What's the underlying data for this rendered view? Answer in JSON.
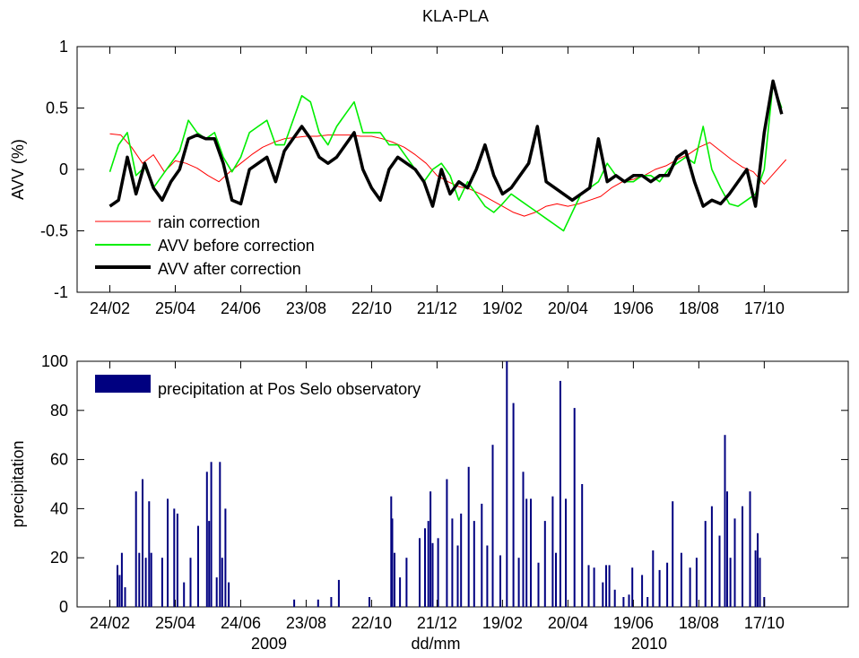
{
  "figure": {
    "title": "KLA-PLA",
    "xlabel": "dd/mm",
    "year_labels": [
      "2009",
      "2010"
    ]
  },
  "colors": {
    "rain": "#ff0000",
    "before": "#00ee00",
    "after": "#000000",
    "precip": "#000080"
  },
  "chart_data": [
    {
      "type": "line",
      "title": "KLA-PLA",
      "ylabel": "AVV (%)",
      "xlabel": "",
      "xlim": [
        "2009-01-25",
        "2011-01-02"
      ],
      "ylim": [
        -1,
        1
      ],
      "yticks": [
        -1,
        -0.5,
        0,
        0.5,
        1
      ],
      "ytick_labels": [
        "-1",
        "-0.5",
        "0",
        "0.5",
        "1"
      ],
      "xticks": [
        "2009-02-24",
        "2009-04-25",
        "2009-06-24",
        "2009-08-23",
        "2009-10-22",
        "2009-12-21",
        "2010-02-19",
        "2010-04-20",
        "2010-06-19",
        "2010-08-18",
        "2010-10-17"
      ],
      "xtick_labels": [
        "24/02",
        "25/04",
        "24/06",
        "23/08",
        "22/10",
        "21/12",
        "19/02",
        "20/04",
        "19/06",
        "18/08",
        "17/10"
      ],
      "grid": false,
      "legend_position": "bottom-left",
      "series": [
        {
          "name": "rain correction",
          "x": [
            "2009-02-24",
            "2009-03-06",
            "2009-03-16",
            "2009-03-26",
            "2009-04-05",
            "2009-04-15",
            "2009-04-25",
            "2009-05-05",
            "2009-05-15",
            "2009-05-25",
            "2009-06-04",
            "2009-06-14",
            "2009-06-24",
            "2009-07-04",
            "2009-07-14",
            "2009-07-24",
            "2009-08-03",
            "2009-08-13",
            "2009-08-23",
            "2009-09-02",
            "2009-09-12",
            "2009-09-22",
            "2009-10-02",
            "2009-10-12",
            "2009-10-22",
            "2009-11-01",
            "2009-11-11",
            "2009-11-21",
            "2009-12-01",
            "2009-12-11",
            "2009-12-21",
            "2009-12-31",
            "2010-01-10",
            "2010-01-20",
            "2010-01-30",
            "2010-02-09",
            "2010-02-19",
            "2010-03-01",
            "2010-03-11",
            "2010-03-21",
            "2010-03-31",
            "2010-04-10",
            "2010-04-20",
            "2010-04-30",
            "2010-05-10",
            "2010-05-20",
            "2010-05-30",
            "2010-06-09",
            "2010-06-19",
            "2010-06-29",
            "2010-07-09",
            "2010-07-19",
            "2010-07-29",
            "2010-08-08",
            "2010-08-18",
            "2010-08-28",
            "2010-09-07",
            "2010-09-17",
            "2010-09-27",
            "2010-10-07",
            "2010-10-17",
            "2010-10-27",
            "2010-11-06"
          ],
          "values": [
            0.29,
            0.28,
            0.18,
            0.05,
            0.12,
            -0.02,
            0.07,
            0.05,
            0.01,
            -0.05,
            -0.1,
            -0.02,
            0.05,
            0.12,
            0.18,
            0.22,
            0.25,
            0.26,
            0.27,
            0.27,
            0.28,
            0.28,
            0.28,
            0.27,
            0.27,
            0.25,
            0.22,
            0.18,
            0.12,
            0.05,
            -0.05,
            -0.1,
            -0.14,
            -0.16,
            -0.2,
            -0.25,
            -0.3,
            -0.35,
            -0.38,
            -0.35,
            -0.3,
            -0.28,
            -0.3,
            -0.28,
            -0.25,
            -0.22,
            -0.15,
            -0.1,
            -0.08,
            -0.05,
            0.0,
            0.03,
            0.08,
            0.12,
            0.18,
            0.22,
            0.15,
            0.08,
            0.02,
            -0.02,
            -0.12,
            -0.02,
            0.08
          ]
        },
        {
          "name": "AVV before correction",
          "x": [
            "2009-02-24",
            "2009-03-04",
            "2009-03-12",
            "2009-03-20",
            "2009-03-28",
            "2009-04-05",
            "2009-04-13",
            "2009-04-21",
            "2009-04-29",
            "2009-05-07",
            "2009-05-15",
            "2009-05-23",
            "2009-05-31",
            "2009-06-08",
            "2009-06-16",
            "2009-06-24",
            "2009-07-02",
            "2009-07-10",
            "2009-07-18",
            "2009-07-26",
            "2009-08-03",
            "2009-08-11",
            "2009-08-19",
            "2009-08-27",
            "2009-09-04",
            "2009-09-12",
            "2009-09-20",
            "2009-09-28",
            "2009-10-06",
            "2009-10-14",
            "2009-10-22",
            "2009-10-30",
            "2009-11-07",
            "2009-11-15",
            "2009-11-23",
            "2009-12-01",
            "2009-12-09",
            "2009-12-17",
            "2009-12-25",
            "2010-01-02",
            "2010-01-10",
            "2010-01-18",
            "2010-01-26",
            "2010-02-03",
            "2010-02-11",
            "2010-02-19",
            "2010-02-27",
            "2010-03-07",
            "2010-03-15",
            "2010-03-23",
            "2010-03-31",
            "2010-04-08",
            "2010-04-16",
            "2010-04-24",
            "2010-05-02",
            "2010-05-10",
            "2010-05-18",
            "2010-05-26",
            "2010-06-03",
            "2010-06-11",
            "2010-06-19",
            "2010-06-27",
            "2010-07-05",
            "2010-07-13",
            "2010-07-21",
            "2010-07-29",
            "2010-08-06",
            "2010-08-14",
            "2010-08-22",
            "2010-08-30",
            "2010-09-07",
            "2010-09-15",
            "2010-09-23",
            "2010-10-01",
            "2010-10-09",
            "2010-10-17",
            "2010-10-25",
            "2010-11-02"
          ],
          "values": [
            -0.02,
            0.2,
            0.3,
            -0.05,
            0.02,
            -0.15,
            -0.05,
            0.05,
            0.15,
            0.4,
            0.3,
            0.25,
            0.3,
            0.1,
            -0.02,
            0.1,
            0.3,
            0.35,
            0.4,
            0.2,
            0.2,
            0.4,
            0.6,
            0.55,
            0.3,
            0.2,
            0.35,
            0.45,
            0.55,
            0.3,
            0.3,
            0.3,
            0.2,
            0.2,
            0.1,
            0.0,
            -0.1,
            0.0,
            0.05,
            -0.05,
            -0.25,
            -0.1,
            -0.2,
            -0.3,
            -0.35,
            -0.28,
            -0.2,
            -0.25,
            -0.3,
            -0.35,
            -0.4,
            -0.45,
            -0.5,
            -0.35,
            -0.2,
            -0.15,
            -0.1,
            0.05,
            -0.05,
            -0.1,
            -0.1,
            -0.05,
            -0.05,
            -0.1,
            0.0,
            0.05,
            0.1,
            0.05,
            0.35,
            0.0,
            -0.15,
            -0.28,
            -0.3,
            -0.25,
            -0.2,
            0.0,
            0.7,
            0.5
          ]
        },
        {
          "name": "AVV after correction",
          "x": [
            "2009-02-24",
            "2009-03-04",
            "2009-03-12",
            "2009-03-20",
            "2009-03-28",
            "2009-04-05",
            "2009-04-13",
            "2009-04-21",
            "2009-04-29",
            "2009-05-07",
            "2009-05-15",
            "2009-05-23",
            "2009-05-31",
            "2009-06-08",
            "2009-06-16",
            "2009-06-24",
            "2009-07-02",
            "2009-07-10",
            "2009-07-18",
            "2009-07-26",
            "2009-08-03",
            "2009-08-11",
            "2009-08-19",
            "2009-08-27",
            "2009-09-04",
            "2009-09-12",
            "2009-09-20",
            "2009-09-28",
            "2009-10-06",
            "2009-10-14",
            "2009-10-22",
            "2009-10-30",
            "2009-11-07",
            "2009-11-15",
            "2009-11-23",
            "2009-12-01",
            "2009-12-09",
            "2009-12-17",
            "2009-12-25",
            "2010-01-02",
            "2010-01-10",
            "2010-01-18",
            "2010-01-26",
            "2010-02-03",
            "2010-02-11",
            "2010-02-19",
            "2010-02-27",
            "2010-03-07",
            "2010-03-15",
            "2010-03-23",
            "2010-03-31",
            "2010-04-08",
            "2010-04-16",
            "2010-04-24",
            "2010-05-02",
            "2010-05-10",
            "2010-05-18",
            "2010-05-26",
            "2010-06-03",
            "2010-06-11",
            "2010-06-19",
            "2010-06-27",
            "2010-07-05",
            "2010-07-13",
            "2010-07-21",
            "2010-07-29",
            "2010-08-06",
            "2010-08-14",
            "2010-08-22",
            "2010-08-30",
            "2010-09-07",
            "2010-09-15",
            "2010-09-23",
            "2010-10-01",
            "2010-10-09",
            "2010-10-17",
            "2010-10-25",
            "2010-11-02"
          ],
          "values": [
            -0.3,
            -0.25,
            0.1,
            -0.2,
            0.05,
            -0.15,
            -0.25,
            -0.1,
            0.0,
            0.25,
            0.28,
            0.25,
            0.25,
            0.05,
            -0.25,
            -0.28,
            0.0,
            0.05,
            0.1,
            -0.1,
            0.15,
            0.25,
            0.35,
            0.25,
            0.1,
            0.05,
            0.1,
            0.2,
            0.3,
            0.0,
            -0.15,
            -0.25,
            0.0,
            0.1,
            0.05,
            0.0,
            -0.1,
            -0.3,
            0.0,
            -0.2,
            -0.1,
            -0.15,
            0.0,
            0.2,
            -0.05,
            -0.2,
            -0.15,
            -0.05,
            0.05,
            0.35,
            -0.1,
            -0.15,
            -0.2,
            -0.25,
            -0.2,
            -0.15,
            0.25,
            -0.1,
            -0.05,
            -0.1,
            -0.05,
            -0.05,
            -0.1,
            -0.05,
            -0.05,
            0.1,
            0.15,
            -0.1,
            -0.3,
            -0.25,
            -0.28,
            -0.2,
            -0.1,
            0.0,
            -0.3,
            0.3,
            0.72,
            0.45
          ]
        }
      ]
    },
    {
      "type": "bar",
      "title": "",
      "ylabel": "precipitation",
      "xlabel": "dd/mm",
      "xlim": [
        "2009-01-25",
        "2011-01-02"
      ],
      "ylim": [
        0,
        100
      ],
      "yticks": [
        0,
        20,
        40,
        60,
        80,
        100
      ],
      "ytick_labels": [
        "0",
        "20",
        "40",
        "60",
        "80",
        "100"
      ],
      "xticks": [
        "2009-02-24",
        "2009-04-25",
        "2009-06-24",
        "2009-08-23",
        "2009-10-22",
        "2009-12-21",
        "2010-02-19",
        "2010-04-20",
        "2010-06-19",
        "2010-08-18",
        "2010-10-17"
      ],
      "xtick_labels": [
        "24/02",
        "25/04",
        "24/06",
        "23/08",
        "22/10",
        "21/12",
        "19/02",
        "20/04",
        "19/06",
        "18/08",
        "17/10"
      ],
      "grid": false,
      "legend_position": "top-left",
      "series": [
        {
          "name": "precipitation at Pos Selo observatory",
          "x": [
            "2009-03-03",
            "2009-03-05",
            "2009-03-07",
            "2009-03-10",
            "2009-03-20",
            "2009-03-23",
            "2009-03-26",
            "2009-03-29",
            "2009-04-01",
            "2009-04-03",
            "2009-04-13",
            "2009-04-18",
            "2009-04-24",
            "2009-04-27",
            "2009-05-03",
            "2009-05-09",
            "2009-05-16",
            "2009-05-24",
            "2009-05-26",
            "2009-05-28",
            "2009-06-02",
            "2009-06-05",
            "2009-06-07",
            "2009-06-10",
            "2009-06-13",
            "2009-08-12",
            "2009-09-03",
            "2009-09-15",
            "2009-09-22",
            "2009-10-20",
            "2009-11-09",
            "2009-11-10",
            "2009-11-12",
            "2009-11-17",
            "2009-11-23",
            "2009-12-05",
            "2009-12-10",
            "2009-12-13",
            "2009-12-15",
            "2009-12-17",
            "2009-12-22",
            "2009-12-30",
            "2010-01-04",
            "2010-01-09",
            "2010-01-12",
            "2010-01-19",
            "2010-01-24",
            "2010-01-31",
            "2010-02-05",
            "2010-02-10",
            "2010-02-17",
            "2010-02-23",
            "2010-03-01",
            "2010-03-06",
            "2010-03-10",
            "2010-03-13",
            "2010-03-17",
            "2010-03-24",
            "2010-03-30",
            "2010-04-06",
            "2010-04-09",
            "2010-04-13",
            "2010-04-18",
            "2010-04-26",
            "2010-05-03",
            "2010-05-09",
            "2010-05-14",
            "2010-05-22",
            "2010-05-25",
            "2010-05-28",
            "2010-06-02",
            "2010-06-10",
            "2010-06-15",
            "2010-06-18",
            "2010-06-27",
            "2010-07-02",
            "2010-07-07",
            "2010-07-13",
            "2010-07-20",
            "2010-07-25",
            "2010-08-02",
            "2010-08-10",
            "2010-08-16",
            "2010-08-24",
            "2010-08-30",
            "2010-09-06",
            "2010-09-11",
            "2010-09-13",
            "2010-09-16",
            "2010-09-20",
            "2010-09-27",
            "2010-10-04",
            "2010-10-09",
            "2010-10-11",
            "2010-10-13",
            "2010-10-17"
          ],
          "values": [
            17,
            13,
            22,
            8,
            47,
            22,
            52,
            20,
            43,
            22,
            20,
            44,
            40,
            38,
            10,
            20,
            33,
            55,
            35,
            59,
            12,
            59,
            20,
            40,
            10,
            3,
            3,
            4,
            11,
            4,
            45,
            36,
            22,
            12,
            20,
            28,
            32,
            35,
            47,
            26,
            28,
            52,
            36,
            25,
            38,
            57,
            35,
            42,
            25,
            66,
            21,
            100,
            83,
            20,
            55,
            44,
            44,
            18,
            35,
            45,
            22,
            92,
            44,
            81,
            50,
            17,
            16,
            10,
            17,
            17,
            7,
            4,
            5,
            16,
            13,
            4,
            23,
            15,
            18,
            43,
            22,
            16,
            20,
            35,
            41,
            29,
            70,
            47,
            20,
            36,
            41,
            47,
            23,
            30,
            20,
            4
          ]
        }
      ]
    }
  ]
}
